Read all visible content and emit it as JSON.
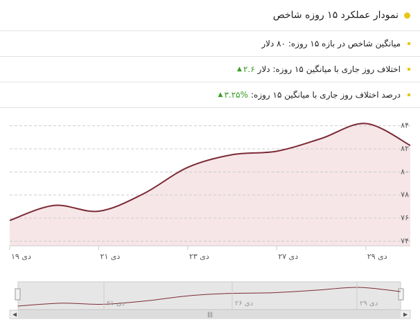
{
  "header": {
    "title": "نمودار عملکرد ۱۵ روزه شاخص"
  },
  "stats": [
    {
      "label": "میانگین شاخص در بازه ۱۵ روزه: ۸۰ دلار"
    },
    {
      "label": "اختلاف روز جاری با میانگین ۱۵ روزه: دلار",
      "value": "۲.۶"
    },
    {
      "label": "درصد اختلاف روز جاری با میانگین ۱۵ روزه:",
      "value": "۳.۲۵%"
    }
  ],
  "chart_data": {
    "type": "area",
    "categories": [
      "۱۹ دی",
      null,
      "۲۱ دی",
      null,
      "۲۳ دی",
      null,
      "۲۷ دی",
      null,
      "۲۹ دی",
      null
    ],
    "values": [
      75.8,
      77.1,
      76.6,
      78.1,
      80.4,
      81.5,
      81.8,
      82.9,
      84.2,
      82.3
    ],
    "color": "#7b2a35",
    "fill": "#f6e6e8",
    "ylim": [
      73.6,
      84.7
    ],
    "yticks": [
      {
        "value": 74,
        "label": "۷۴"
      },
      {
        "value": 76,
        "label": "۷۶"
      },
      {
        "value": 78,
        "label": "۷۸"
      },
      {
        "value": 80,
        "label": "۸۰"
      },
      {
        "value": 82,
        "label": "۸۲"
      },
      {
        "value": 84,
        "label": "۸۴"
      }
    ],
    "grid": true
  },
  "navigator": {
    "labels": [
      "۲۱ دی",
      "۲۶ دی",
      "۲۹ دی"
    ]
  }
}
